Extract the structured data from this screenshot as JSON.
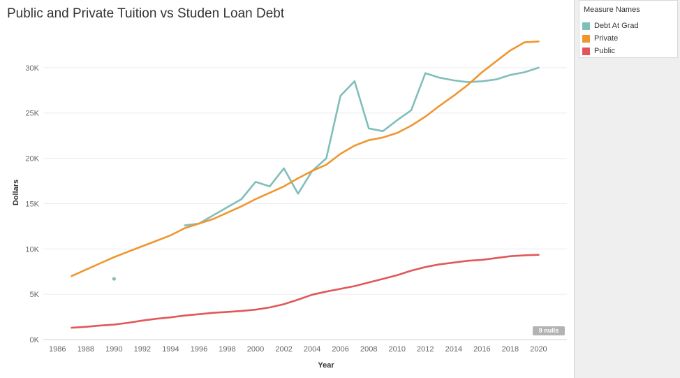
{
  "colors": {
    "debt": "#7fbfb9",
    "private": "#f0962e",
    "public": "#e15759",
    "grid": "#ececec",
    "axis_text": "#666666"
  },
  "legend": {
    "title": "Measure Names",
    "items": [
      {
        "label": "Debt At Grad",
        "color": "#7fbfb9"
      },
      {
        "label": "Private",
        "color": "#f0962e"
      },
      {
        "label": "Public",
        "color": "#e15759"
      }
    ]
  },
  "nulls_badge": "9 nulls",
  "chart_data": {
    "type": "line",
    "title": "Public and Private Tuition vs Studen Loan Debt",
    "xlabel": "Year",
    "ylabel": "Dollars",
    "xlim": [
      1985,
      2022
    ],
    "ylim": [
      0,
      34000
    ],
    "x_ticks": [
      1986,
      1988,
      1990,
      1992,
      1994,
      1996,
      1998,
      2000,
      2002,
      2004,
      2006,
      2008,
      2010,
      2012,
      2014,
      2016,
      2018,
      2020
    ],
    "y_ticks": [
      0,
      5000,
      10000,
      15000,
      20000,
      25000,
      30000
    ],
    "y_tick_labels": [
      "0K",
      "5K",
      "10K",
      "15K",
      "20K",
      "25K",
      "30K"
    ],
    "grid": "horizontal",
    "series": [
      {
        "name": "Debt At Grad",
        "color": "#7fbfb9",
        "points": [
          [
            1990,
            6700
          ],
          [
            1995,
            12600
          ],
          [
            1996,
            12800
          ],
          [
            1997,
            13700
          ],
          [
            1998,
            14600
          ],
          [
            1999,
            15500
          ],
          [
            2000,
            17400
          ],
          [
            2001,
            16900
          ],
          [
            2002,
            18900
          ],
          [
            2003,
            16100
          ],
          [
            2004,
            18600
          ],
          [
            2005,
            20000
          ],
          [
            2006,
            26900
          ],
          [
            2007,
            28500
          ],
          [
            2008,
            23300
          ],
          [
            2009,
            23000
          ],
          [
            2010,
            24200
          ],
          [
            2011,
            25300
          ],
          [
            2012,
            29400
          ],
          [
            2013,
            28900
          ],
          [
            2014,
            28600
          ],
          [
            2015,
            28400
          ],
          [
            2016,
            28500
          ],
          [
            2017,
            28700
          ],
          [
            2018,
            29200
          ],
          [
            2019,
            29500
          ],
          [
            2020,
            30000
          ]
        ]
      },
      {
        "name": "Private",
        "color": "#f0962e",
        "points": [
          [
            1987,
            7000
          ],
          [
            1988,
            7700
          ],
          [
            1989,
            8400
          ],
          [
            1990,
            9100
          ],
          [
            1991,
            9700
          ],
          [
            1992,
            10300
          ],
          [
            1993,
            10900
          ],
          [
            1994,
            11500
          ],
          [
            1995,
            12300
          ],
          [
            1996,
            12800
          ],
          [
            1997,
            13300
          ],
          [
            1998,
            14000
          ],
          [
            1999,
            14700
          ],
          [
            2000,
            15500
          ],
          [
            2001,
            16200
          ],
          [
            2002,
            16900
          ],
          [
            2003,
            17800
          ],
          [
            2004,
            18600
          ],
          [
            2005,
            19300
          ],
          [
            2006,
            20500
          ],
          [
            2007,
            21400
          ],
          [
            2008,
            22000
          ],
          [
            2009,
            22300
          ],
          [
            2010,
            22800
          ],
          [
            2011,
            23600
          ],
          [
            2012,
            24600
          ],
          [
            2013,
            25800
          ],
          [
            2014,
            26900
          ],
          [
            2015,
            28100
          ],
          [
            2016,
            29500
          ],
          [
            2017,
            30700
          ],
          [
            2018,
            31900
          ],
          [
            2019,
            32800
          ],
          [
            2020,
            32900
          ]
        ]
      },
      {
        "name": "Public",
        "color": "#e15759",
        "points": [
          [
            1987,
            1300
          ],
          [
            1988,
            1400
          ],
          [
            1989,
            1550
          ],
          [
            1990,
            1650
          ],
          [
            1991,
            1850
          ],
          [
            1992,
            2100
          ],
          [
            1993,
            2300
          ],
          [
            1994,
            2450
          ],
          [
            1995,
            2650
          ],
          [
            1996,
            2800
          ],
          [
            1997,
            2950
          ],
          [
            1998,
            3050
          ],
          [
            1999,
            3150
          ],
          [
            2000,
            3300
          ],
          [
            2001,
            3550
          ],
          [
            2002,
            3900
          ],
          [
            2003,
            4400
          ],
          [
            2004,
            4950
          ],
          [
            2005,
            5300
          ],
          [
            2006,
            5600
          ],
          [
            2007,
            5900
          ],
          [
            2008,
            6300
          ],
          [
            2009,
            6700
          ],
          [
            2010,
            7100
          ],
          [
            2011,
            7600
          ],
          [
            2012,
            8000
          ],
          [
            2013,
            8300
          ],
          [
            2014,
            8500
          ],
          [
            2015,
            8700
          ],
          [
            2016,
            8800
          ],
          [
            2017,
            9000
          ],
          [
            2018,
            9200
          ],
          [
            2019,
            9300
          ],
          [
            2020,
            9350
          ]
        ]
      }
    ]
  }
}
